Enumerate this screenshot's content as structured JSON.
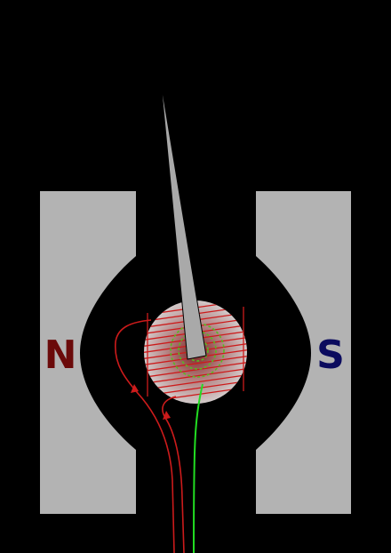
{
  "diagram": {
    "north_pole": {
      "label": "N",
      "color": "#6b0a0a"
    },
    "south_pole": {
      "label": "S",
      "color": "#0b0b5e"
    },
    "magnet_color": "#b3b3b3",
    "background_color": "#000000",
    "coil_color": "#cc1b1b",
    "lead_wire_color": "#cc1b1b",
    "spiral_spring_color": "#55bb22",
    "spring_lead_color": "#22dd22",
    "pointer_color": "#a9a9a9"
  }
}
